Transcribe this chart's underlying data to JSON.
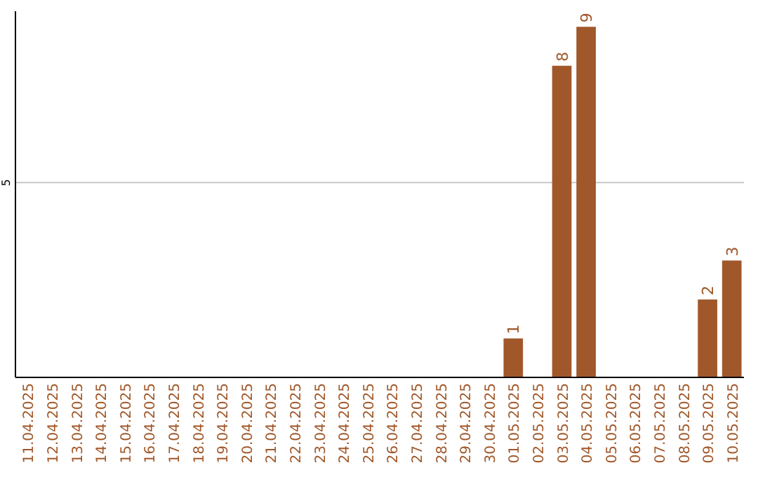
{
  "chart_data": {
    "type": "bar",
    "categories": [
      "11.04.2025",
      "12.04.2025",
      "13.04.2025",
      "14.04.2025",
      "15.04.2025",
      "16.04.2025",
      "17.04.2025",
      "18.04.2025",
      "19.04.2025",
      "20.04.2025",
      "21.04.2025",
      "22.04.2025",
      "23.04.2025",
      "24.04.2025",
      "25.04.2025",
      "26.04.2025",
      "27.04.2025",
      "28.04.2025",
      "29.04.2025",
      "30.04.2025",
      "01.05.2025",
      "02.05.2025",
      "03.05.2025",
      "04.05.2025",
      "05.05.2025",
      "06.05.2025",
      "07.05.2025",
      "08.05.2025",
      "09.05.2025",
      "10.05.2025"
    ],
    "values": [
      null,
      null,
      null,
      null,
      null,
      null,
      null,
      null,
      null,
      null,
      null,
      null,
      null,
      null,
      null,
      null,
      null,
      null,
      null,
      null,
      1,
      null,
      8,
      9,
      null,
      null,
      null,
      null,
      2,
      3
    ],
    "data_labels": true,
    "color": "#a0582a",
    "ylim": [
      0,
      9.4
    ],
    "yticks": [
      {
        "value": 0,
        "label": null
      },
      5
    ],
    "grid": "y"
  }
}
